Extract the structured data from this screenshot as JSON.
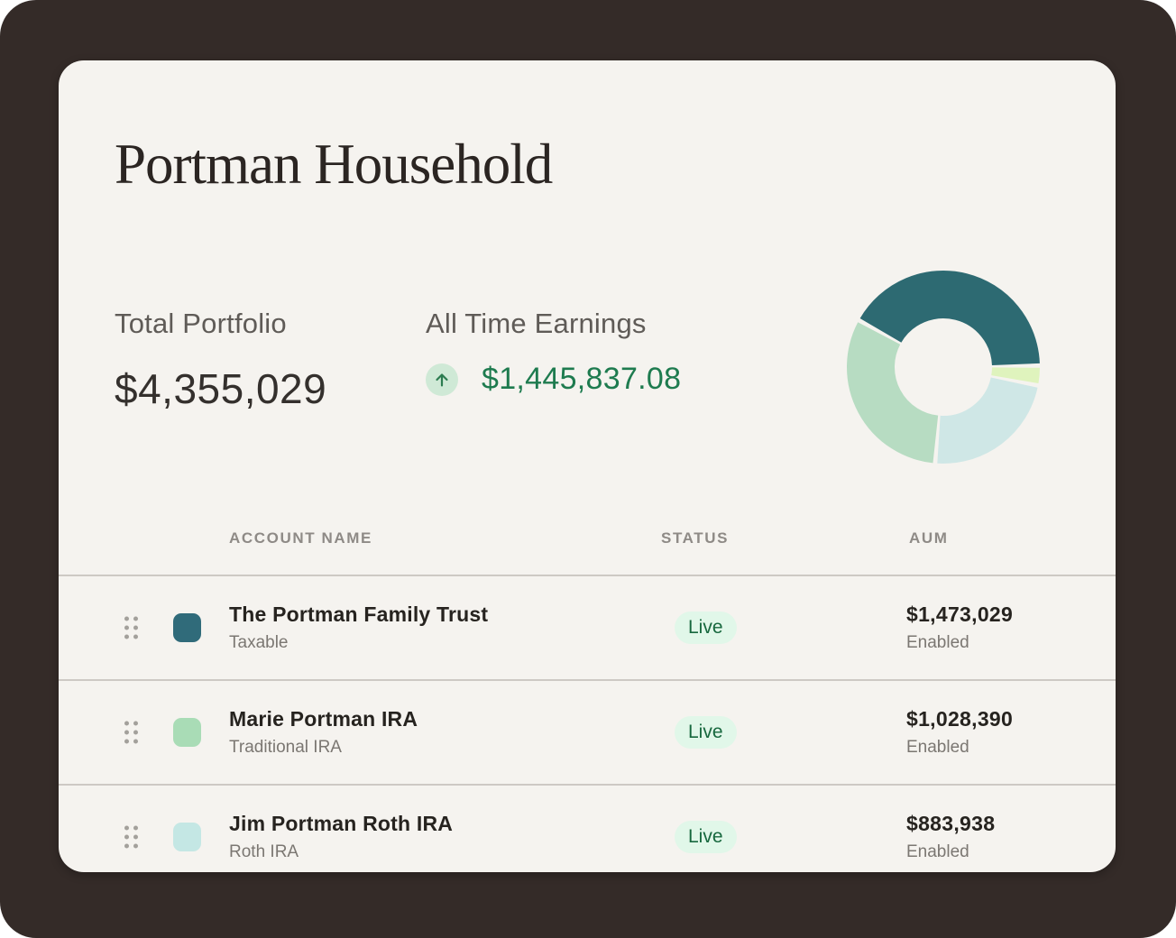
{
  "header": {
    "title": "Portman Household"
  },
  "summary": {
    "total_portfolio": {
      "label": "Total Portfolio",
      "value": "$4,355,029"
    },
    "all_time_earnings": {
      "label": "All Time Earnings",
      "value": "$1,445,837.08",
      "trend": "up"
    }
  },
  "chart_data": {
    "type": "pie",
    "donut": true,
    "title": "",
    "start_angle_deg": -61,
    "segments": [
      {
        "label": "teal",
        "percent": 41.7,
        "color": "#2d6a72"
      },
      {
        "label": "pale-lime",
        "percent": 3.3,
        "color": "#dff3bd"
      },
      {
        "label": "light-blue",
        "percent": 23.3,
        "color": "#cfe7e6"
      },
      {
        "label": "light-green",
        "percent": 31.7,
        "color": "#b7dcc2"
      }
    ]
  },
  "table": {
    "columns": [
      "ACCOUNT NAME",
      "STATUS",
      "AUM"
    ],
    "rows": [
      {
        "name": "The Portman Family Trust",
        "type": "Taxable",
        "swatch_color": "#306b7a",
        "status": "Live",
        "aum": "$1,473,029",
        "aum_sub": "Enabled"
      },
      {
        "name": "Marie Portman IRA",
        "type": "Traditional IRA",
        "swatch_color": "#a9dcb6",
        "status": "Live",
        "aum": "$1,028,390",
        "aum_sub": "Enabled"
      },
      {
        "name": "Jim Portman Roth IRA",
        "type": "Roth IRA",
        "swatch_color": "#c4e7e4",
        "status": "Live",
        "aum": "$883,938",
        "aum_sub": "Enabled"
      }
    ]
  },
  "colors": {
    "frame": "#342b28",
    "card_bg": "#f5f3ef",
    "accent_green": "#1e7b4f",
    "pill_bg": "#e1f7e9",
    "pill_text": "#17683e",
    "badge_bg": "#cfe9d6",
    "divider": "#cdc9c4"
  }
}
